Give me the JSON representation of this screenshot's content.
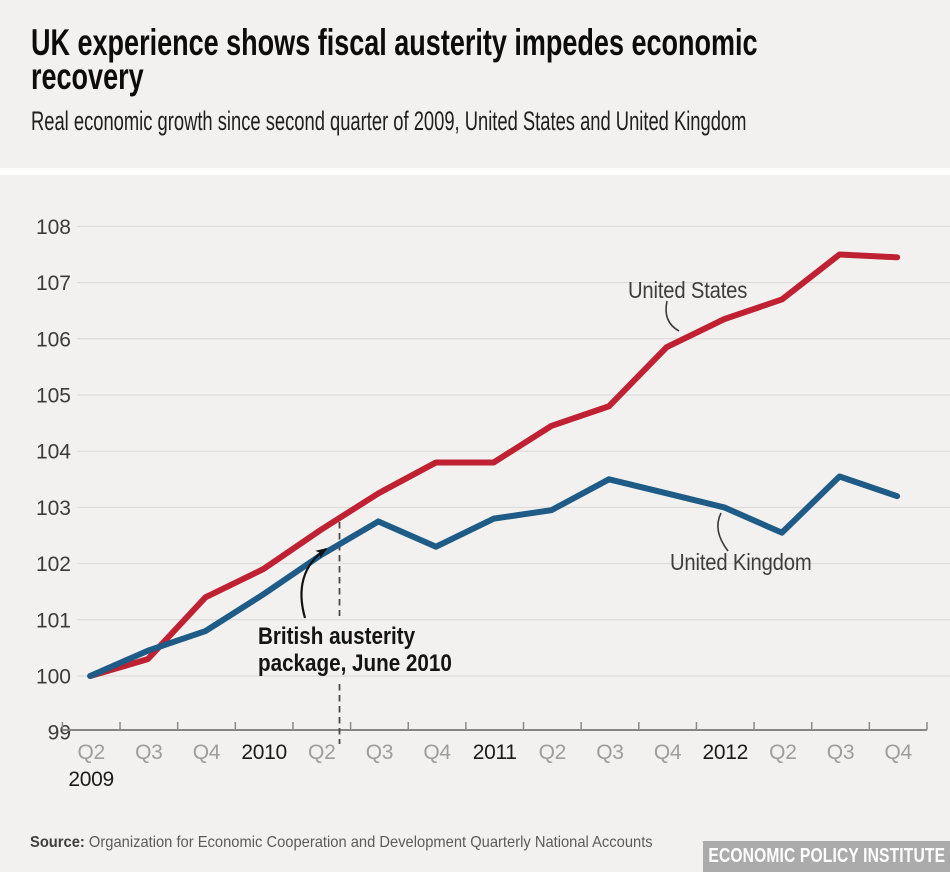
{
  "header": {
    "title_line1": "UK experience shows fiscal austerity impedes economic",
    "title_line2": "recovery",
    "subtitle": "Real economic growth since second quarter of 2009, United States and United Kingdom"
  },
  "chart_data": {
    "type": "line",
    "title": "UK experience shows fiscal austerity impedes economic recovery",
    "subtitle": "Real economic growth since second quarter of 2009, United States and United Kingdom",
    "x_quarters": [
      "2009 Q2",
      "2009 Q3",
      "2009 Q4",
      "2010 Q1",
      "2010 Q2",
      "2010 Q3",
      "2010 Q4",
      "2011 Q1",
      "2011 Q2",
      "2011 Q3",
      "2011 Q4",
      "2012 Q1",
      "2012 Q2",
      "2012 Q3",
      "2012 Q4"
    ],
    "x_tick_labels": [
      "Q2",
      "Q3",
      "Q4",
      "2010",
      "Q2",
      "Q3",
      "Q4",
      "2011",
      "Q2",
      "Q3",
      "Q4",
      "2012",
      "Q2",
      "Q3",
      "Q4"
    ],
    "x_axis_year_start_label": "2009",
    "y_tick_labels": [
      "99",
      "100",
      "101",
      "102",
      "103",
      "104",
      "105",
      "106",
      "107",
      "108"
    ],
    "ylim": [
      99,
      108
    ],
    "grid": true,
    "legend_position": "inline-labels",
    "series": [
      {
        "name": "United States",
        "color": "#bf2133",
        "values": [
          100,
          100.3,
          101.4,
          101.9,
          102.6,
          103.25,
          103.8,
          103.8,
          104.45,
          104.8,
          105.85,
          106.35,
          106.7,
          107.5,
          107.45
        ]
      },
      {
        "name": "United Kingdom",
        "color": "#1e5b87",
        "values": [
          100,
          100.45,
          100.8,
          101.45,
          102.15,
          102.75,
          102.3,
          102.8,
          102.95,
          103.5,
          103.25,
          103.0,
          102.55,
          103.55,
          103.2
        ]
      }
    ],
    "annotation": {
      "line1": "British austerity",
      "line2": "package, June 2010"
    }
  },
  "footer": {
    "source_label": "Source:",
    "source_text": " Organization for Economic Cooperation and Development Quarterly National Accounts",
    "logo_text": "ECONOMIC POLICY INSTITUTE"
  }
}
